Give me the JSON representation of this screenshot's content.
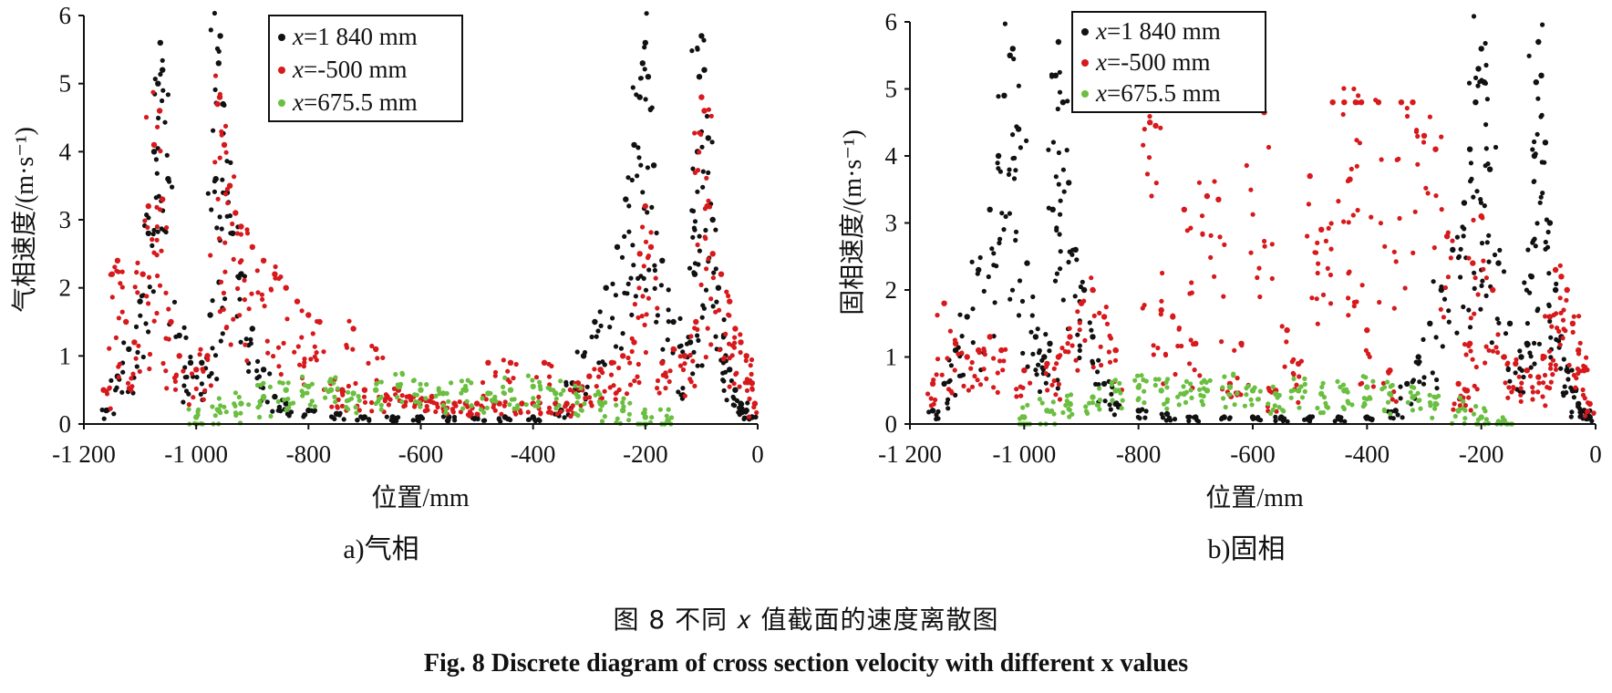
{
  "chart_data": [
    {
      "type": "scatter",
      "subcaption": "a)气相",
      "xlabel": "位置/mm",
      "ylabel": "气相速度/(m·s⁻¹)",
      "xlim": [
        -1200,
        0
      ],
      "ylim": [
        0,
        6
      ],
      "xticks": [
        -1200,
        -1000,
        -800,
        -600,
        -400,
        -200,
        0
      ],
      "xtick_labels": [
        "-1 200",
        "-1 000",
        "-800",
        "-600",
        "-400",
        "-200",
        "0"
      ],
      "yticks": [
        0,
        1,
        2,
        3,
        4,
        5,
        6
      ],
      "ytick_labels": [
        "0",
        "1",
        "2",
        "3",
        "4",
        "5",
        "6"
      ],
      "legend_position": "top-left inside",
      "grid": false,
      "series": [
        {
          "name": "x=1 840 mm",
          "name_prefix": "x",
          "name_suffix": "=1 840 mm",
          "color": "#111111",
          "x": [
            -1160,
            -1140,
            -1120,
            -1100,
            -1085,
            -1075,
            -1068,
            -1064,
            -1060,
            -1050,
            -1030,
            -1010,
            -990,
            -975,
            -965,
            -960,
            -957,
            -952,
            -945,
            -935,
            -920,
            -900,
            -880,
            -860,
            -840,
            -800,
            -750,
            -700,
            -650,
            -600,
            -550,
            -500,
            -450,
            -400,
            -350,
            -330,
            -310,
            -290,
            -270,
            -250,
            -235,
            -220,
            -210,
            -205,
            -200,
            -195,
            -185,
            -170,
            -150,
            -130,
            -120,
            -112,
            -107,
            -104,
            -100,
            -95,
            -88,
            -80,
            -70,
            -60,
            -50,
            -40,
            -30,
            -20,
            -10
          ],
          "y": [
            0.2,
            0.7,
            1.1,
            1.8,
            2.8,
            4.0,
            5.0,
            5.6,
            5.2,
            3.6,
            1.3,
            0.9,
            0.9,
            1.6,
            3.6,
            5.3,
            5.7,
            4.7,
            3.4,
            2.8,
            2.2,
            1.4,
            0.8,
            0.4,
            0.3,
            0.2,
            0.15,
            0.1,
            0.1,
            0.1,
            0.1,
            0.1,
            0.1,
            0.1,
            0.2,
            0.6,
            1.0,
            1.5,
            2.0,
            2.6,
            3.3,
            4.1,
            4.8,
            5.3,
            5.6,
            5.1,
            3.8,
            2.4,
            1.5,
            1.0,
            1.2,
            2.2,
            4.0,
            5.1,
            5.7,
            5.2,
            4.2,
            3.0,
            2.0,
            1.3,
            0.8,
            0.5,
            0.3,
            0.2,
            0.1
          ]
        },
        {
          "name": "x=-500 mm",
          "name_prefix": "x",
          "name_suffix": "=-500 mm",
          "color": "#d7191c",
          "x": [
            -1165,
            -1150,
            -1140,
            -1125,
            -1110,
            -1095,
            -1085,
            -1075,
            -1065,
            -1060,
            -1045,
            -1030,
            -1000,
            -980,
            -962,
            -958,
            -950,
            -940,
            -930,
            -920,
            -900,
            -880,
            -860,
            -840,
            -820,
            -800,
            -780,
            -760,
            -740,
            -720,
            -700,
            -680,
            -660,
            -640,
            -620,
            -600,
            -580,
            -560,
            -540,
            -520,
            -500,
            -480,
            -460,
            -440,
            -420,
            -400,
            -380,
            -360,
            -340,
            -320,
            -300,
            -280,
            -260,
            -240,
            -220,
            -210,
            -200,
            -190,
            -170,
            -150,
            -130,
            -110,
            -100,
            -95,
            -90,
            -80,
            -65,
            -50,
            -40,
            -30,
            -20,
            -10,
            -5
          ],
          "y": [
            0.5,
            2.2,
            2.4,
            1.5,
            1.2,
            2.2,
            3.2,
            4.1,
            4.6,
            3.3,
            1.5,
            1.0,
            0.8,
            1.0,
            4.7,
            4.8,
            4.1,
            3.5,
            3.1,
            2.9,
            2.6,
            2.4,
            2.2,
            2.0,
            1.8,
            1.6,
            1.5,
            0.6,
            0.5,
            1.4,
            0.5,
            1.1,
            0.4,
            0.5,
            0.4,
            0.35,
            0.4,
            0.3,
            0.3,
            0.3,
            0.3,
            0.9,
            0.3,
            0.9,
            0.3,
            0.3,
            0.9,
            0.3,
            0.3,
            0.6,
            0.7,
            0.8,
            0.9,
            1.0,
            1.2,
            2.5,
            3.2,
            2.6,
            0.9,
            1.1,
            1.0,
            1.5,
            4.8,
            4.6,
            3.2,
            2.5,
            2.2,
            1.8,
            1.4,
            1.2,
            1.0,
            0.6,
            0.3
          ]
        },
        {
          "name": "x=675.5 mm",
          "name_prefix": "x",
          "name_suffix": "=675.5 mm",
          "color": "#6abf40",
          "x": [
            -1000,
            -960,
            -920,
            -880,
            -840,
            -800,
            -760,
            -720,
            -680,
            -640,
            -600,
            -560,
            -520,
            -480,
            -440,
            -400,
            -360,
            -320,
            -280,
            -240,
            -200,
            -160
          ],
          "y": [
            0.1,
            0.2,
            0.3,
            0.4,
            0.5,
            0.55,
            0.5,
            0.45,
            0.5,
            0.55,
            0.5,
            0.45,
            0.5,
            0.45,
            0.5,
            0.55,
            0.45,
            0.4,
            0.3,
            0.2,
            0.1,
            0.05
          ]
        }
      ]
    },
    {
      "type": "scatter",
      "subcaption": "b)固相",
      "xlabel": "位置/mm",
      "ylabel": "固相速度/(m·s⁻¹)",
      "xlim": [
        -1200,
        0
      ],
      "ylim": [
        0,
        6
      ],
      "xticks": [
        -1200,
        -1000,
        -800,
        -600,
        -400,
        -200,
        0
      ],
      "xtick_labels": [
        "-1 200",
        "-1 000",
        "-800",
        "-600",
        "-400",
        "-200",
        "0"
      ],
      "yticks": [
        0,
        1,
        2,
        3,
        4,
        5,
        6
      ],
      "ytick_labels": [
        "0",
        "1",
        "2",
        "3",
        "4",
        "5",
        "6"
      ],
      "legend_position": "top-left inside",
      "grid": false,
      "series": [
        {
          "name": "x=1 840 mm",
          "name_prefix": "x",
          "name_suffix": "=1 840 mm",
          "color": "#111111",
          "x": [
            -1160,
            -1140,
            -1120,
            -1100,
            -1080,
            -1060,
            -1045,
            -1035,
            -1025,
            -1020,
            -1010,
            -995,
            -980,
            -965,
            -955,
            -950,
            -945,
            -940,
            -932,
            -922,
            -910,
            -895,
            -880,
            -860,
            -840,
            -800,
            -750,
            -700,
            -650,
            -600,
            -550,
            -500,
            -450,
            -400,
            -350,
            -330,
            -310,
            -290,
            -270,
            -250,
            -230,
            -220,
            -210,
            -205,
            -200,
            -195,
            -185,
            -170,
            -150,
            -130,
            -120,
            -112,
            -107,
            -104,
            -100,
            -95,
            -88,
            -80,
            -70,
            -60,
            -50,
            -40,
            -30,
            -20,
            -10
          ],
          "y": [
            0.2,
            0.6,
            1.1,
            1.6,
            2.3,
            3.2,
            4.0,
            4.9,
            5.5,
            5.6,
            4.4,
            2.4,
            1.3,
            1.0,
            1.2,
            3.2,
            5.2,
            5.7,
            4.8,
            3.6,
            2.6,
            2.0,
            1.3,
            0.6,
            0.3,
            0.2,
            0.15,
            0.1,
            0.1,
            0.1,
            0.1,
            0.1,
            0.1,
            0.1,
            0.2,
            0.6,
            1.0,
            1.5,
            2.0,
            2.6,
            3.3,
            4.1,
            4.8,
            5.3,
            5.6,
            5.1,
            3.8,
            2.4,
            1.5,
            1.0,
            1.2,
            2.2,
            4.0,
            5.1,
            5.7,
            5.2,
            4.2,
            3.0,
            2.0,
            1.3,
            0.8,
            0.5,
            0.3,
            0.2,
            0.1
          ]
        },
        {
          "name": "x=-500 mm",
          "name_prefix": "x",
          "name_suffix": "=-500 mm",
          "color": "#d7191c",
          "x": [
            -1160,
            -1140,
            -1120,
            -1100,
            -1080,
            -1060,
            -1040,
            -1000,
            -960,
            -940,
            -920,
            -900,
            -880,
            -860,
            -840,
            -780,
            -770,
            -760,
            -740,
            -720,
            -700,
            -680,
            -660,
            -640,
            -620,
            -600,
            -580,
            -560,
            -540,
            -520,
            -500,
            -480,
            -460,
            -440,
            -430,
            -420,
            -410,
            -400,
            -380,
            -360,
            -340,
            -320,
            -300,
            -280,
            -260,
            -240,
            -225,
            -220,
            -215,
            -200,
            -180,
            -160,
            -140,
            -120,
            -100,
            -90,
            -80,
            -70,
            -60,
            -50,
            -40,
            -30,
            -20,
            -10
          ],
          "y": [
            0.6,
            1.8,
            1.2,
            1.0,
            1.1,
            1.3,
            1.1,
            0.8,
            0.9,
            1.0,
            1.3,
            1.8,
            2.0,
            1.6,
            1.1,
            4.5,
            4.45,
            1.7,
            1.6,
            3.2,
            1.2,
            3.4,
            3.35,
            0.6,
            1.2,
            4.7,
            4.65,
            0.5,
            1.4,
            0.9,
            3.7,
            2.9,
            4.8,
            4.8,
            3.65,
            4.8,
            4.8,
            1.4,
            4.8,
            0.8,
            4.8,
            4.8,
            4.3,
            4.1,
            2.8,
            0.6,
            0.5,
            1.2,
            2.4,
            3.1,
            2.0,
            1.0,
            0.9,
            0.8,
            0.7,
            1.0,
            1.6,
            2.3,
            2.2,
            2.0,
            1.5,
            1.1,
            0.8,
            0.3
          ]
        },
        {
          "name": "x=675.5 mm",
          "name_prefix": "x",
          "name_suffix": "=675.5 mm",
          "color": "#6abf40",
          "x": [
            -1000,
            -960,
            -920,
            -880,
            -840,
            -800,
            -760,
            -720,
            -680,
            -640,
            -600,
            -560,
            -520,
            -480,
            -440,
            -400,
            -360,
            -320,
            -280,
            -240,
            -200,
            -160
          ],
          "y": [
            0.1,
            0.2,
            0.3,
            0.4,
            0.5,
            0.55,
            0.5,
            0.45,
            0.5,
            0.55,
            0.5,
            0.45,
            0.5,
            0.45,
            0.5,
            0.55,
            0.45,
            0.4,
            0.3,
            0.2,
            0.1,
            0.05
          ]
        }
      ]
    }
  ],
  "figure_caption_cn": "图 8   不同 𝑥 值截面的速度离散图",
  "figure_caption_en": "Fig. 8    Discrete diagram of cross section velocity with different x values"
}
